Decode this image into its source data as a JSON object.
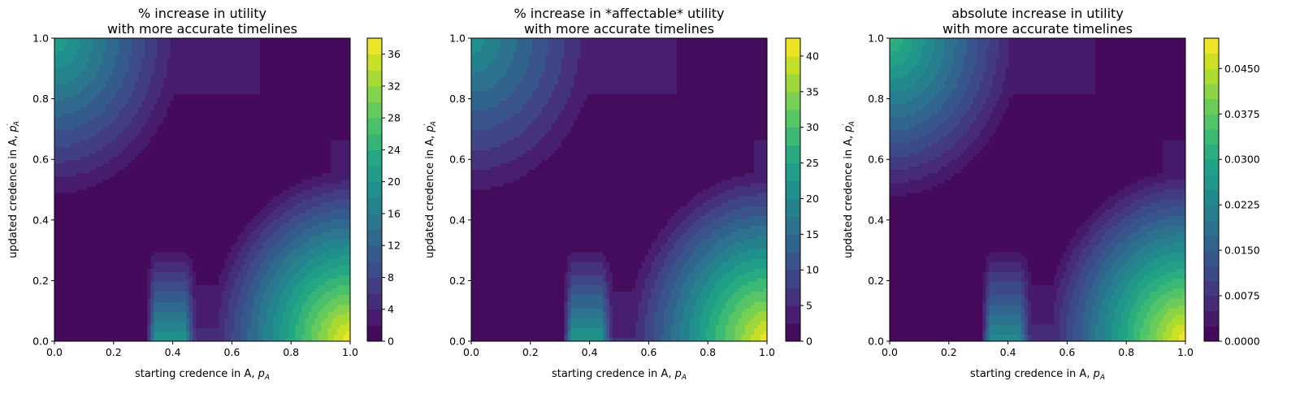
{
  "chart_data": [
    {
      "type": "heatmap",
      "title_lines": [
        "% increase in utility",
        "with more accurate timelines"
      ],
      "xlabel": "starting credence in A, p_A",
      "ylabel": "updated credence in A, p'_A",
      "xlim": [
        0,
        1
      ],
      "ylim": [
        0,
        1
      ],
      "x_ticks": [
        "0.0",
        "0.2",
        "0.4",
        "0.6",
        "0.8",
        "1.0"
      ],
      "y_ticks": [
        "0.0",
        "0.2",
        "0.4",
        "0.6",
        "0.8",
        "1.0"
      ],
      "colorbar": {
        "min": 0,
        "max": 38,
        "levels": 19,
        "ticks": [
          0,
          4,
          8,
          12,
          16,
          20,
          24,
          28,
          32,
          36
        ],
        "tick_labels": [
          "0",
          "4",
          "8",
          "12",
          "16",
          "20",
          "24",
          "28",
          "32",
          "36"
        ]
      },
      "colormap": "viridis",
      "peaks": {
        "bottom_right": 38,
        "top_left": 22,
        "bottom_middle": 21
      }
    },
    {
      "type": "heatmap",
      "title_lines": [
        "% increase in *affectable* utility",
        "with more accurate timelines"
      ],
      "xlabel": "starting credence in A, p_A",
      "ylabel": "updated credence in A, p'_A",
      "xlim": [
        0,
        1
      ],
      "ylim": [
        0,
        1
      ],
      "x_ticks": [
        "0.0",
        "0.2",
        "0.4",
        "0.6",
        "0.8",
        "1.0"
      ],
      "y_ticks": [
        "0.0",
        "0.2",
        "0.4",
        "0.6",
        "0.8",
        "1.0"
      ],
      "colorbar": {
        "min": 0,
        "max": 42.5,
        "levels": 17,
        "ticks": [
          0,
          5,
          10,
          15,
          20,
          25,
          30,
          35,
          40
        ],
        "tick_labels": [
          "0",
          "5",
          "10",
          "15",
          "20",
          "25",
          "30",
          "35",
          "40"
        ]
      },
      "colormap": "viridis",
      "peaks": {
        "bottom_right": 42,
        "top_left": 22,
        "bottom_middle": 24
      }
    },
    {
      "type": "heatmap",
      "title_lines": [
        "absolute increase in utility",
        "with more accurate timelines"
      ],
      "xlabel": "starting credence in A, p_A",
      "ylabel": "updated credence in A, p'_A",
      "xlim": [
        0,
        1
      ],
      "ylim": [
        0,
        1
      ],
      "x_ticks": [
        "0.0",
        "0.2",
        "0.4",
        "0.6",
        "0.8",
        "1.0"
      ],
      "y_ticks": [
        "0.0",
        "0.2",
        "0.4",
        "0.6",
        "0.8",
        "1.0"
      ],
      "colorbar": {
        "min": 0,
        "max": 0.05,
        "levels": 20,
        "ticks": [
          0,
          0.0075,
          0.015,
          0.0225,
          0.03,
          0.0375,
          0.045
        ],
        "tick_labels": [
          "0.0000",
          "0.0075",
          "0.0150",
          "0.0225",
          "0.0300",
          "0.0375",
          "0.0450"
        ]
      },
      "colormap": "viridis",
      "peaks": {
        "bottom_right": 0.05,
        "top_left": 0.033,
        "bottom_middle": 0.025
      }
    }
  ]
}
